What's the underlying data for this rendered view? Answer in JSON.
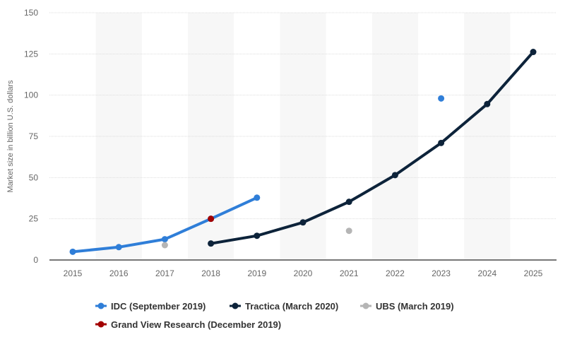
{
  "chart_data": {
    "type": "line",
    "title": "",
    "xlabel": "",
    "ylabel": "Market size in billion U.S. dollars",
    "categories": [
      "2015",
      "2016",
      "2017",
      "2018",
      "2019",
      "2020",
      "2021",
      "2022",
      "2023",
      "2024",
      "2025"
    ],
    "ylim": [
      0,
      150
    ],
    "yticks": [
      0,
      25,
      50,
      75,
      100,
      125,
      150
    ],
    "grid": true,
    "legend_position": "bottom",
    "series": [
      {
        "name": "IDC (September 2019)",
        "color": "#2f7ed8",
        "points": [
          [
            "2015",
            5
          ],
          [
            "2016",
            7.8
          ],
          [
            "2017",
            12.6
          ],
          [
            "2018",
            25
          ],
          [
            "2019",
            37.8
          ],
          [
            "2023",
            98
          ]
        ],
        "line_through": [
          "2015",
          "2016",
          "2017",
          "2018",
          "2019"
        ]
      },
      {
        "name": "Tractica (March 2020)",
        "color": "#0d233a",
        "points": [
          [
            "2018",
            10
          ],
          [
            "2019",
            14.7
          ],
          [
            "2020",
            22.8
          ],
          [
            "2021",
            35.3
          ],
          [
            "2022",
            51.5
          ],
          [
            "2023",
            71
          ],
          [
            "2024",
            94.6
          ],
          [
            "2025",
            126.2
          ]
        ],
        "line_through": [
          "2018",
          "2019",
          "2020",
          "2021",
          "2022",
          "2023",
          "2024",
          "2025"
        ]
      },
      {
        "name": "UBS (March 2019)",
        "color": "#b5b5b5",
        "points": [
          [
            "2017",
            9
          ],
          [
            "2021",
            17.7
          ]
        ],
        "line_through": []
      },
      {
        "name": "Grand View Research (December 2019)",
        "color": "#a30000",
        "points": [
          [
            "2018",
            25
          ]
        ],
        "line_through": []
      }
    ]
  }
}
